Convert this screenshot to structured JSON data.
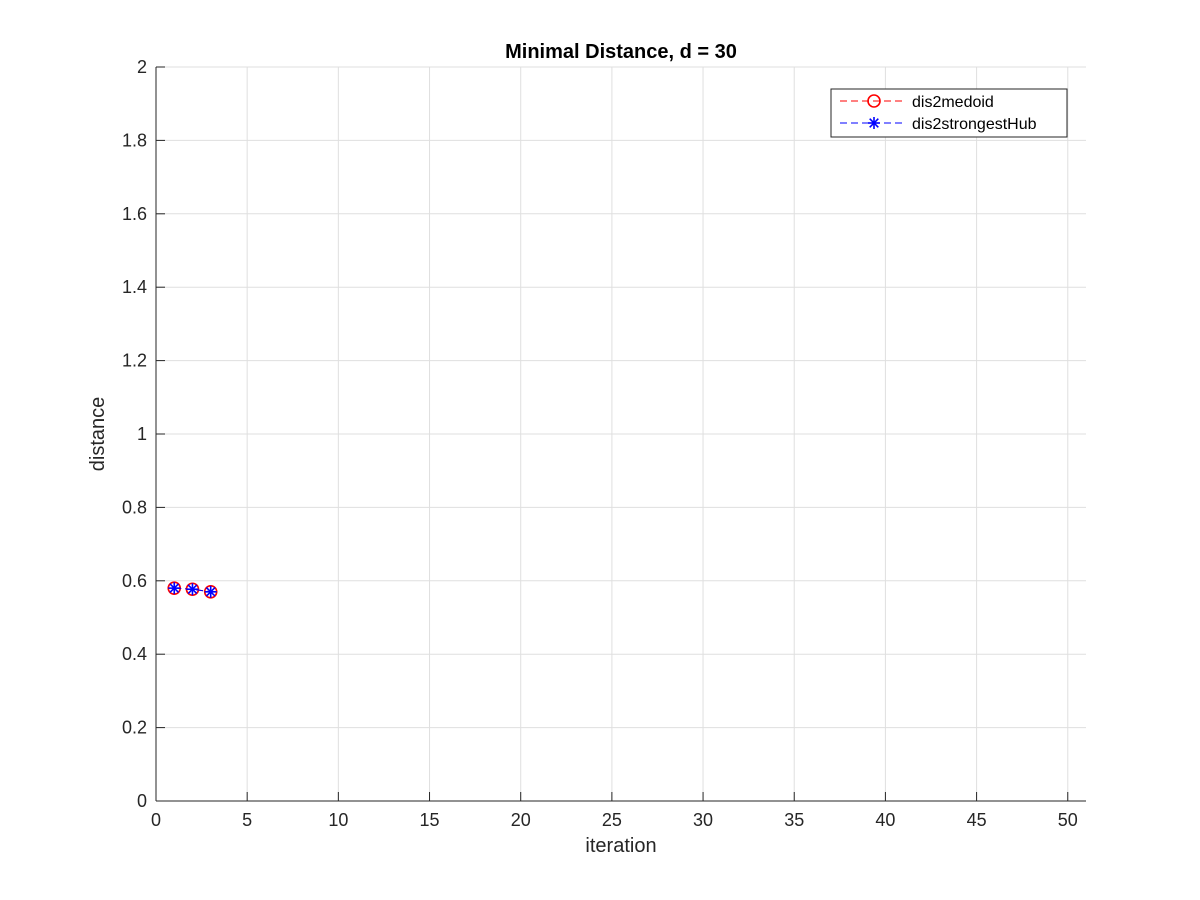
{
  "chart_data": {
    "type": "line",
    "title": "Minimal Distance, d = 30",
    "xlabel": "iteration",
    "ylabel": "distance",
    "xlim": [
      0,
      51
    ],
    "ylim": [
      0,
      2
    ],
    "xticks": [
      0,
      5,
      10,
      15,
      20,
      25,
      30,
      35,
      40,
      45,
      50
    ],
    "yticks": [
      0,
      0.2,
      0.4,
      0.6,
      0.8,
      1,
      1.2,
      1.4,
      1.6,
      1.8,
      2
    ],
    "xtick_labels": [
      "0",
      "5",
      "10",
      "15",
      "20",
      "25",
      "30",
      "35",
      "40",
      "45",
      "50"
    ],
    "ytick_labels": [
      "0",
      "0.2",
      "0.4",
      "0.6",
      "0.8",
      "1",
      "1.2",
      "1.4",
      "1.6",
      "1.8",
      "2"
    ],
    "grid": true,
    "legend_position": "top-right",
    "series": [
      {
        "name": "dis2medoid",
        "color": "#ff0000",
        "marker": "circle",
        "line_style": "dashed",
        "x": [
          1,
          2,
          3
        ],
        "y": [
          0.58,
          0.577,
          0.57
        ]
      },
      {
        "name": "dis2strongestHub",
        "color": "#0000ff",
        "marker": "asterisk",
        "line_style": "dashed",
        "x": [
          1,
          2,
          3
        ],
        "y": [
          0.58,
          0.577,
          0.57
        ]
      }
    ]
  }
}
